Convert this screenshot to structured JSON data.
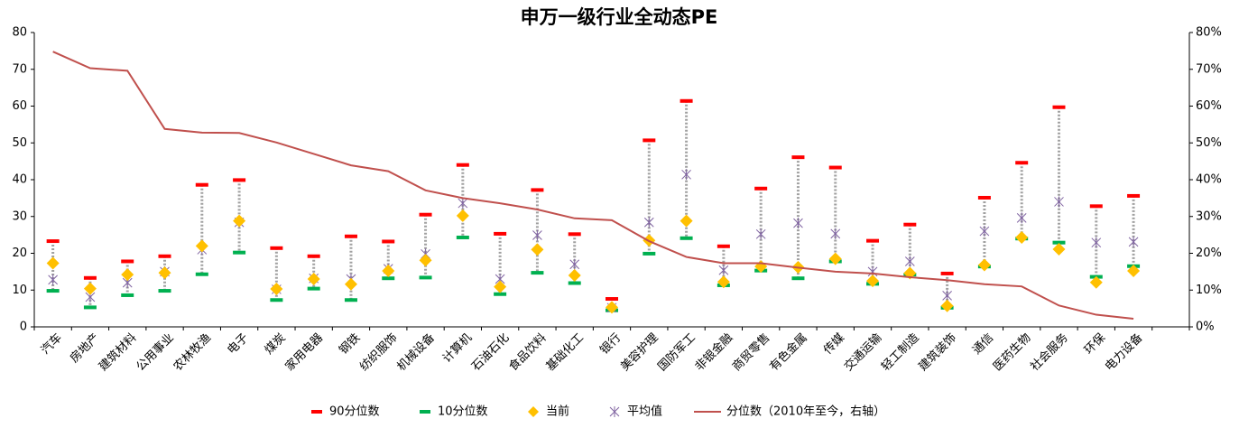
{
  "chart_data": {
    "type": "range_dot",
    "title": "申万一级行业全动态PE",
    "categories": [
      "汽车",
      "房地产",
      "建筑材料",
      "公用事业",
      "农林牧渔",
      "电子",
      "煤炭",
      "家用电器",
      "钢铁",
      "纺织服饰",
      "机械设备",
      "计算机",
      "石油石化",
      "食品饮料",
      "基础化工",
      "银行",
      "美容护理",
      "国防军工",
      "非银金融",
      "商贸零售",
      "有色金属",
      "传媒",
      "交通运输",
      "轻工制造",
      "建筑装饰",
      "通信",
      "医药生物",
      "社会服务",
      "环保",
      "电力设备",
      null
    ],
    "series": [
      {
        "name": "90分位数",
        "color": "#ff0000",
        "values": [
          23.3,
          13.3,
          17.8,
          19.2,
          38.6,
          39.9,
          21.4,
          19.2,
          24.6,
          23.2,
          30.5,
          44,
          25.3,
          37.2,
          25.2,
          7.6,
          50.7,
          61.4,
          21.9,
          37.6,
          46.1,
          43.3,
          23.4,
          27.8,
          14.5,
          35.1,
          44.6,
          59.7,
          32.8,
          35.6,
          null
        ]
      },
      {
        "name": "10分位数",
        "color": "#00b050",
        "values": [
          9.8,
          5.3,
          8.6,
          9.8,
          14.3,
          20.2,
          7.3,
          10.4,
          7.3,
          13.2,
          13.4,
          24.3,
          8.9,
          14.7,
          11.9,
          4.5,
          19.9,
          24.1,
          11.3,
          15.3,
          13.2,
          17.8,
          11.7,
          14.2,
          5.2,
          16.4,
          24.0,
          22.9,
          13.6,
          16.5,
          null
        ]
      },
      {
        "name": "当前",
        "color": "#ffc000",
        "values": [
          17.3,
          10.4,
          14.2,
          14.7,
          22.0,
          28.8,
          10.3,
          13.0,
          11.6,
          15.2,
          18.1,
          30.2,
          10.9,
          21.0,
          14.0,
          5.3,
          23.5,
          28.8,
          12.2,
          16.4,
          16.2,
          18.5,
          12.5,
          14.6,
          5.7,
          16.8,
          24.3,
          21.1,
          12.1,
          15.2,
          null
        ]
      },
      {
        "name": "平均值",
        "color": "#8064a2",
        "values": [
          12.8,
          8.1,
          12.0,
          15.0,
          21.0,
          28.4,
          10.2,
          13.2,
          13.0,
          15.8,
          19.8,
          33.6,
          13.0,
          24.9,
          17.0,
          5.2,
          28.4,
          41.4,
          15.4,
          25.2,
          28.2,
          25.3,
          15.0,
          17.8,
          8.5,
          26.0,
          29.6,
          34.0,
          22.9,
          23.1,
          null
        ]
      },
      {
        "name": "分位数（2010年至今，右轴）",
        "color": "#c0504d",
        "axis": "y2",
        "values": [
          74.8,
          70.3,
          69.6,
          53.8,
          52.8,
          52.7,
          50.1,
          47.0,
          43.9,
          42.3,
          37.1,
          35.0,
          33.6,
          31.9,
          29.5,
          29.0,
          23.3,
          19.0,
          17.3,
          17.3,
          16.1,
          15.0,
          14.5,
          13.5,
          12.7,
          11.6,
          11.0,
          5.8,
          3.3,
          2.2,
          null
        ]
      }
    ],
    "ylim": [
      0,
      80
    ],
    "yticks": [
      0,
      10,
      20,
      30,
      40,
      50,
      60,
      70,
      80
    ],
    "y2lim": [
      0,
      80
    ],
    "y2ticks": [
      {
        "value": 0,
        "label": "0%"
      },
      {
        "value": 10,
        "label": "10%"
      },
      {
        "value": 20,
        "label": "20%"
      },
      {
        "value": 30,
        "label": "30%"
      },
      {
        "value": 40,
        "label": "40%"
      },
      {
        "value": 50,
        "label": "50%"
      },
      {
        "value": 60,
        "label": "60%"
      },
      {
        "value": 70,
        "label": "70%"
      },
      {
        "value": 80,
        "label": "80%"
      }
    ],
    "legend": "bottom"
  }
}
